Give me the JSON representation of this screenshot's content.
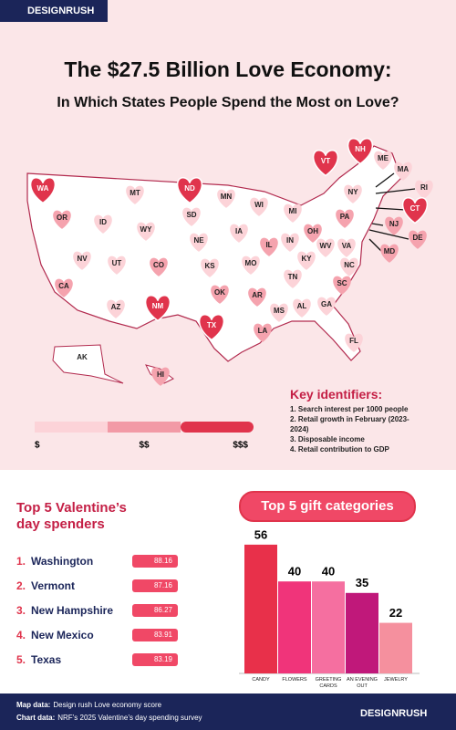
{
  "header": {
    "brand": "DESIGNRUSH",
    "title_lines": [
      "The $27.5 Billion Love Economy:",
      "In Which States People Spend the Most on Love?"
    ]
  },
  "map": {
    "states": [
      {
        "label": "WA",
        "color": "#e0344c"
      },
      {
        "label": "OR",
        "color": "#f5a3ae"
      },
      {
        "label": "ID",
        "color": "#fcd3d8"
      },
      {
        "label": "NV",
        "color": "#fcd3d8"
      },
      {
        "label": "CA",
        "color": "#f5a3ae"
      },
      {
        "label": "MT",
        "color": "#fcd3d8"
      },
      {
        "label": "WY",
        "color": "#fcd3d8"
      },
      {
        "label": "UT",
        "color": "#fcd3d8"
      },
      {
        "label": "CO",
        "color": "#f5a3ae"
      },
      {
        "label": "AZ",
        "color": "#fcd3d8"
      },
      {
        "label": "NM",
        "color": "#e0344c"
      },
      {
        "label": "ND",
        "color": "#e0344c"
      },
      {
        "label": "SD",
        "color": "#fcd3d8"
      },
      {
        "label": "NE",
        "color": "#fcd3d8"
      },
      {
        "label": "KS",
        "color": "#fcd3d8"
      },
      {
        "label": "OK",
        "color": "#f5a3ae"
      },
      {
        "label": "TX",
        "color": "#e0344c"
      },
      {
        "label": "MN",
        "color": "#fcd3d8"
      },
      {
        "label": "IA",
        "color": "#fcd3d8"
      },
      {
        "label": "MO",
        "color": "#fcd3d8"
      },
      {
        "label": "AR",
        "color": "#f5a3ae"
      },
      {
        "label": "LA",
        "color": "#f5a3ae"
      },
      {
        "label": "MS",
        "color": "#fcd3d8"
      },
      {
        "label": "WI",
        "color": "#fcd3d8"
      },
      {
        "label": "IL",
        "color": "#f5a3ae"
      },
      {
        "label": "IN",
        "color": "#fcd3d8"
      },
      {
        "label": "MI",
        "color": "#fcd3d8"
      },
      {
        "label": "OH",
        "color": "#f5a3ae"
      },
      {
        "label": "KY",
        "color": "#fcd3d8"
      },
      {
        "label": "TN",
        "color": "#fcd3d8"
      },
      {
        "label": "AL",
        "color": "#fcd3d8"
      },
      {
        "label": "GA",
        "color": "#fcd3d8"
      },
      {
        "label": "FL",
        "color": "#fcd3d8"
      },
      {
        "label": "SC",
        "color": "#f5a3ae"
      },
      {
        "label": "NC",
        "color": "#fcd3d8"
      },
      {
        "label": "VA",
        "color": "#fcd3d8"
      },
      {
        "label": "WV",
        "color": "#fcd3d8"
      },
      {
        "label": "PA",
        "color": "#f5a3ae"
      },
      {
        "label": "NY",
        "color": "#fcd3d8"
      },
      {
        "label": "VT",
        "color": "#e0344c"
      },
      {
        "label": "NH",
        "color": "#e0344c"
      },
      {
        "label": "ME",
        "color": "#fcd3d8"
      },
      {
        "label": "MA",
        "color": "#fcd3d8"
      },
      {
        "label": "RI",
        "color": "#fcd3d8"
      },
      {
        "label": "CT",
        "color": "#e0344c"
      },
      {
        "label": "NJ",
        "color": "#f5a3ae"
      },
      {
        "label": "DE",
        "color": "#f5a3ae"
      },
      {
        "label": "MD",
        "color": "#f5a3ae"
      },
      {
        "label": "AK",
        "color": "#ffffff"
      },
      {
        "label": "HI",
        "color": "#f5a3ae"
      }
    ],
    "legend": {
      "labels": [
        "$",
        "$$",
        "$$$"
      ],
      "colors": [
        "#fcd3d8",
        "#f29aa6",
        "#e0344c"
      ]
    },
    "key": {
      "title": "Key identifiers:",
      "items": [
        "1. Search interest per 1000 people",
        "2. Retail growth in February (2023-2024)",
        "3. Disposable income",
        "4. Retail contribution to GDP"
      ]
    }
  },
  "spenders": {
    "title": "Top 5 Valentine’s day spenders",
    "items": [
      {
        "rank": "1.",
        "name": "Washington",
        "score": 88.16
      },
      {
        "rank": "2.",
        "name": "Vermont",
        "score": 87.16
      },
      {
        "rank": "3.",
        "name": "New Hampshire",
        "score": 86.27
      },
      {
        "rank": "4.",
        "name": "New Mexico",
        "score": 83.91
      },
      {
        "rank": "5.",
        "name": "Texas",
        "score": 83.19
      }
    ]
  },
  "chart_data": {
    "type": "bar",
    "title": "Top 5 gift categories",
    "categories": [
      "CANDY",
      "FLOWERS",
      "GREETING CARDS",
      "AN EVENING OUT",
      "JEWELRY"
    ],
    "values": [
      56,
      40,
      40,
      35,
      22
    ],
    "colors": [
      "#e8304a",
      "#f0347a",
      "#f56fa0",
      "#c0187a",
      "#f5909e"
    ]
  },
  "footer": {
    "notes": [
      {
        "label": "Map data:",
        "text": "Design rush Love economy score"
      },
      {
        "label": "Chart data:",
        "text": "NRF’s 2025 Valentine’s day spending survey"
      }
    ],
    "brand": "DESIGNRUSH"
  }
}
